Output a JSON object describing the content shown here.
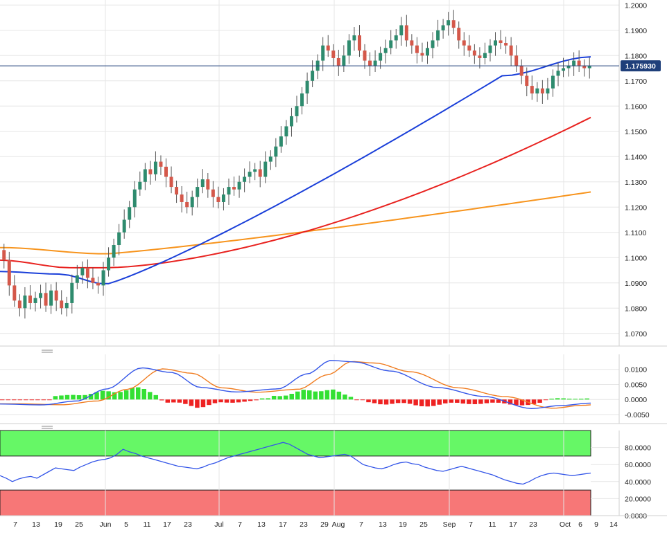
{
  "chart_data": [
    {
      "type": "candlestick",
      "title": "",
      "y_ticks": [
        "1.2000",
        "1.1900",
        "1.1800",
        "1.1700",
        "1.1600",
        "1.1500",
        "1.1400",
        "1.1300",
        "1.1200",
        "1.1100",
        "1.1000",
        "1.0900",
        "1.0800",
        "1.0700"
      ],
      "ylim": [
        1.065,
        1.202
      ],
      "last_price_label": "1.175930",
      "last_price": 1.17593,
      "x_labels": [
        "7",
        "13",
        "19",
        "25",
        "Jun",
        "5",
        "11",
        "17",
        "23",
        "Jul",
        "7",
        "13",
        "17",
        "23",
        "29",
        "Aug",
        "7",
        "13",
        "19",
        "25",
        "Sep",
        "7",
        "11",
        "17",
        "23",
        "Oct",
        "6",
        "9",
        "14"
      ],
      "candles_close": [
        1.099,
        1.089,
        1.083,
        1.08,
        1.085,
        1.082,
        1.084,
        1.086,
        1.081,
        1.087,
        1.083,
        1.08,
        1.082,
        1.09,
        1.093,
        1.096,
        1.092,
        1.09,
        1.089,
        1.095,
        1.1,
        1.105,
        1.11,
        1.115,
        1.12,
        1.127,
        1.13,
        1.135,
        1.133,
        1.138,
        1.136,
        1.132,
        1.128,
        1.125,
        1.122,
        1.12,
        1.124,
        1.128,
        1.131,
        1.127,
        1.124,
        1.122,
        1.125,
        1.128,
        1.127,
        1.13,
        1.132,
        1.134,
        1.135,
        1.132,
        1.138,
        1.14,
        1.144,
        1.148,
        1.152,
        1.156,
        1.16,
        1.165,
        1.17,
        1.174,
        1.178,
        1.184,
        1.182,
        1.179,
        1.176,
        1.18,
        1.186,
        1.188,
        1.182,
        1.178,
        1.176,
        1.178,
        1.181,
        1.183,
        1.186,
        1.188,
        1.192,
        1.186,
        1.184,
        1.181,
        1.18,
        1.183,
        1.186,
        1.19,
        1.192,
        1.194,
        1.191,
        1.186,
        1.184,
        1.182,
        1.18,
        1.179,
        1.181,
        1.184,
        1.186,
        1.185,
        1.184,
        1.18,
        1.176,
        1.172,
        1.168,
        1.165,
        1.167,
        1.165,
        1.167,
        1.172,
        1.174,
        1.175,
        1.176,
        1.178,
        1.176,
        1.175,
        1.17593
      ],
      "series": [
        {
          "name": "",
          "color": "#1a3fd9",
          "values_start": 1.0945,
          "values_end": 1.1795
        },
        {
          "name": "",
          "color": "#e8221f",
          "values_start": 1.099,
          "values_end": 1.1555
        },
        {
          "name": "",
          "color": "#f7941d",
          "values_start": 1.104,
          "values_end": 1.126
        }
      ]
    },
    {
      "type": "histogram",
      "title": "",
      "y_ticks": [
        "0.0100",
        "0.0050",
        "0.0000",
        "-0.0050"
      ],
      "ylim": [
        -0.008,
        0.015
      ],
      "series": [
        {
          "name": "",
          "color": "#3355e8"
        },
        {
          "name": "",
          "color": "#f07b1e"
        }
      ]
    },
    {
      "type": "line",
      "title": "",
      "y_ticks": [
        "80.0000",
        "60.0000",
        "40.0000",
        "20.0000",
        "0.0000"
      ],
      "ylim": [
        0,
        100
      ],
      "overbought_band": [
        70,
        100
      ],
      "oversold_band": [
        0,
        30
      ],
      "series": [
        {
          "name": "",
          "color": "#3355e8",
          "values": [
            47,
            44,
            40,
            43,
            45,
            46,
            44,
            48,
            52,
            56,
            55,
            54,
            53,
            57,
            60,
            63,
            65,
            66,
            68,
            72,
            78,
            75,
            73,
            70,
            68,
            66,
            64,
            62,
            60,
            58,
            57,
            56,
            55,
            57,
            60,
            62,
            65,
            68,
            70,
            72,
            74,
            76,
            78,
            80,
            82,
            84,
            86,
            84,
            80,
            76,
            72,
            70,
            68,
            69,
            70,
            71,
            72,
            70,
            65,
            60,
            58,
            56,
            55,
            57,
            60,
            62,
            63,
            61,
            60,
            57,
            55,
            53,
            52,
            54,
            56,
            58,
            56,
            54,
            52,
            50,
            48,
            45,
            42,
            40,
            38,
            37,
            40,
            44,
            47,
            49,
            50,
            49,
            48,
            47,
            48,
            49,
            50
          ]
        }
      ]
    }
  ]
}
